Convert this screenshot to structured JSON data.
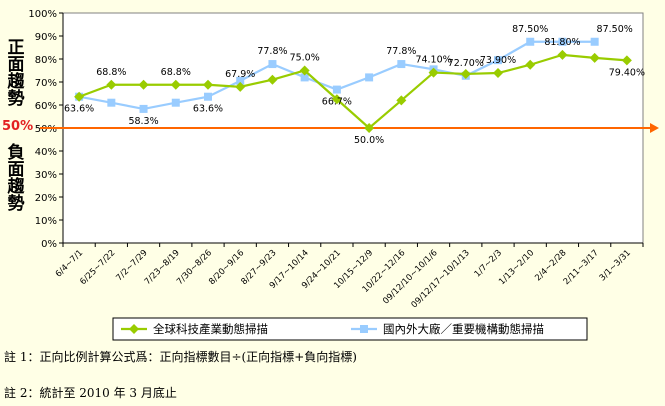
{
  "side_labels": {
    "positive": "正面趨勢",
    "negative": "負面趨勢",
    "fifty": "50%"
  },
  "notes": {
    "note1": "註 1：正向比例計算公式爲：正向指標數目÷(正向指標+負向指標)",
    "note2": "註 2：統計至 2010 年 3 月底止"
  },
  "chart_data": {
    "type": "line",
    "categories": [
      "6/4~7/1",
      "6/25~7/22",
      "7/2~7/29",
      "7/23~8/19",
      "7/30~8/26",
      "8/20~9/16",
      "8/27~9/23",
      "9/17~10/14",
      "9/24~10/21",
      "10/15~12/9",
      "10/22~12/16",
      "09/12/10~10/1/6",
      "09/12/17~10/1/13",
      "1/7~2/3",
      "1/13~2/10",
      "2/4~2/28",
      "2/11~3/17",
      "3/1~3/31"
    ],
    "ylim": [
      0,
      100
    ],
    "yticks": [
      "0%",
      "10%",
      "20%",
      "30%",
      "40%",
      "50%",
      "60%",
      "70%",
      "80%",
      "90%",
      "100%"
    ],
    "reference_line": 50,
    "colors": {
      "reference": "#FF6600",
      "series1": "#99CC00",
      "series2": "#99CCFF"
    },
    "series": [
      {
        "name": "全球科技產業動態掃描",
        "values": [
          63.6,
          68.8,
          68.8,
          68.8,
          68.8,
          67.9,
          71.0,
          75.0,
          62.5,
          50.0,
          62.0,
          74.1,
          73.5,
          73.9,
          77.5,
          81.8,
          80.5,
          79.4
        ],
        "labels": [
          "",
          "68.8%",
          "",
          "68.8%",
          "",
          "67.9%",
          "",
          "75.0%",
          "",
          "50.0%",
          "",
          "74.10%",
          "",
          "73.90%",
          "",
          "81.80%",
          "",
          "79.40%"
        ]
      },
      {
        "name": "國內外大廠／重要機構動態掃描",
        "values": [
          63.6,
          61.0,
          58.3,
          61.0,
          63.6,
          70.5,
          77.8,
          72.0,
          66.7,
          72.0,
          77.8,
          75.5,
          72.7,
          79.5,
          87.5,
          87.5,
          87.5,
          null
        ],
        "labels": [
          "63.6%",
          "",
          "58.3%",
          "",
          "63.6%",
          "",
          "77.8%",
          "",
          "66.7%",
          "",
          "77.8%",
          "",
          "72.70%",
          "",
          "87.50%",
          "",
          "87.50%",
          ""
        ]
      }
    ]
  }
}
